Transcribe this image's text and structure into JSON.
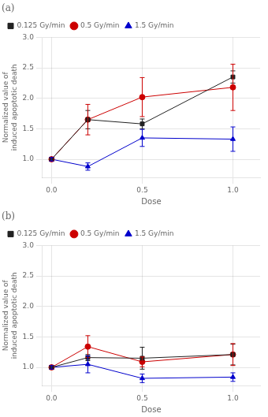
{
  "chart_data": [
    {
      "type": "line",
      "title": "(a)",
      "x": [
        0.0,
        0.2,
        0.5,
        1.0
      ],
      "series": [
        {
          "name": "0.125 Gy/min",
          "color": "#222222",
          "marker": "square",
          "values": [
            1.0,
            1.65,
            1.58,
            2.35
          ],
          "yerr": [
            0.03,
            0.15,
            0.08,
            0.1
          ]
        },
        {
          "name": "0.5 Gy/min",
          "color": "#cc0000",
          "marker": "circle",
          "values": [
            1.0,
            1.65,
            2.02,
            2.18
          ],
          "yerr": [
            0.03,
            0.25,
            0.32,
            0.38
          ]
        },
        {
          "name": "1.5 Gy/min",
          "color": "#0000cc",
          "marker": "triangle",
          "values": [
            1.0,
            0.88,
            1.35,
            1.33
          ],
          "yerr": [
            0.03,
            0.06,
            0.14,
            0.2
          ]
        }
      ],
      "xlabel": "Dose",
      "ylabel": "Normalized value of induced apoptotic death",
      "xlim": [
        -0.05,
        1.15
      ],
      "xticks": [
        {
          "value": 0.0,
          "label": "0.0"
        },
        0.5,
        {
          "value": 1.0,
          "label": "1.0"
        }
      ],
      "ylim": [
        0.7,
        3.0
      ],
      "yticks": [
        {
          "value": 1.0,
          "label": "1.0"
        },
        1.5,
        {
          "value": 2.0,
          "label": "2.0"
        },
        2.5,
        {
          "value": 3.0,
          "label": "3.0"
        }
      ],
      "grid": true,
      "legend": "upper left"
    },
    {
      "type": "line",
      "title": "(b)",
      "x": [
        0.0,
        0.2,
        0.5,
        1.0
      ],
      "series": [
        {
          "name": "0.125 Gy/min",
          "color": "#222222",
          "marker": "square",
          "values": [
            1.0,
            1.16,
            1.15,
            1.21
          ],
          "yerr": [
            0.03,
            0.05,
            0.18,
            0.17
          ]
        },
        {
          "name": "0.5 Gy/min",
          "color": "#cc0000",
          "marker": "circle",
          "values": [
            1.0,
            1.34,
            1.09,
            1.21
          ],
          "yerr": [
            0.03,
            0.18,
            0.08,
            0.18
          ]
        },
        {
          "name": "1.5 Gy/min",
          "color": "#0000cc",
          "marker": "triangle",
          "values": [
            1.0,
            1.05,
            0.82,
            0.84
          ],
          "yerr": [
            0.03,
            0.14,
            0.07,
            0.07
          ]
        }
      ],
      "xlabel": "Dose",
      "ylabel": "Normalized value of induced apoptotic death",
      "xlim": [
        -0.05,
        1.15
      ],
      "xticks": [
        {
          "value": 0.0,
          "label": "0.0"
        },
        0.5,
        {
          "value": 1.0,
          "label": "1.0"
        }
      ],
      "ylim": [
        0.7,
        3.0
      ],
      "yticks": [
        {
          "value": 1.0,
          "label": "1.0"
        },
        1.5,
        {
          "value": 2.0,
          "label": "2.0"
        },
        2.5,
        {
          "value": 3.0,
          "label": "3.0"
        }
      ],
      "grid": true,
      "legend": "upper left"
    }
  ]
}
